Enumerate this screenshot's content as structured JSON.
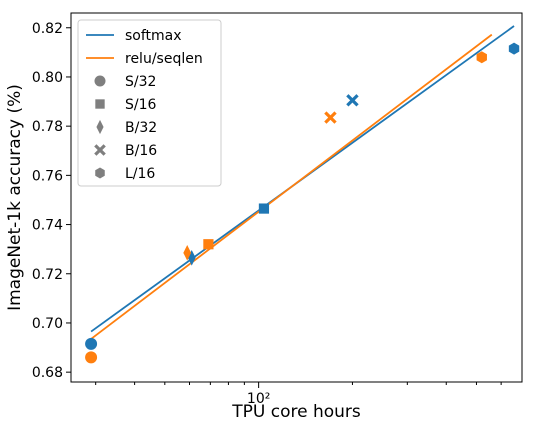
{
  "chart_data": {
    "type": "scatter",
    "xlabel": "TPU core hours",
    "ylabel": "ImageNet-1k accuracy (%)",
    "xscale": "log",
    "xlim": [
      25,
      700
    ],
    "ylim": [
      0.676,
      0.826
    ],
    "yticks": [
      0.68,
      0.7,
      0.72,
      0.74,
      0.76,
      0.78,
      0.8,
      0.82
    ],
    "ytick_labels": [
      "0.68",
      "0.70",
      "0.72",
      "0.74",
      "0.76",
      "0.78",
      "0.80",
      "0.82"
    ],
    "xtick_major": [
      100
    ],
    "xtick_labels": [
      "10²"
    ],
    "xtick_minor": [
      30,
      40,
      50,
      60,
      70,
      80,
      90,
      200,
      300,
      400,
      500,
      600
    ],
    "legend_position": "top-left",
    "grid": false,
    "colors": {
      "softmax": "#1f77b4",
      "relu_seqlen": "#ff7f0e"
    },
    "fit_lines": [
      {
        "name": "softmax",
        "x": [
          29,
          660
        ],
        "y": [
          0.6965,
          0.8207
        ]
      },
      {
        "name": "relu/seqlen",
        "x": [
          29,
          560
        ],
        "y": [
          0.6935,
          0.8172
        ]
      }
    ],
    "marker_legend": [
      {
        "name": "S/32",
        "marker": "circle"
      },
      {
        "name": "S/16",
        "marker": "square"
      },
      {
        "name": "B/32",
        "marker": "thin_diamond"
      },
      {
        "name": "B/16",
        "marker": "x"
      },
      {
        "name": "L/16",
        "marker": "hexagon"
      }
    ],
    "points": [
      {
        "series": "softmax",
        "model": "S/32",
        "x": 29,
        "y": 0.6915
      },
      {
        "series": "softmax",
        "model": "S/16",
        "x": 104,
        "y": 0.7465
      },
      {
        "series": "softmax",
        "model": "B/32",
        "x": 61,
        "y": 0.7265
      },
      {
        "series": "softmax",
        "model": "B/16",
        "x": 200,
        "y": 0.7905
      },
      {
        "series": "softmax",
        "model": "L/16",
        "x": 660,
        "y": 0.8115
      },
      {
        "series": "relu/seqlen",
        "model": "S/32",
        "x": 29,
        "y": 0.686
      },
      {
        "series": "relu/seqlen",
        "model": "S/16",
        "x": 69,
        "y": 0.732
      },
      {
        "series": "relu/seqlen",
        "model": "B/32",
        "x": 59,
        "y": 0.7285
      },
      {
        "series": "relu/seqlen",
        "model": "B/16",
        "x": 170,
        "y": 0.7835
      },
      {
        "series": "relu/seqlen",
        "model": "L/16",
        "x": 520,
        "y": 0.808
      }
    ]
  }
}
